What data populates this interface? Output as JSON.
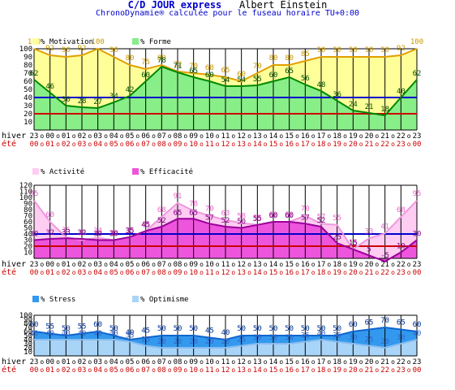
{
  "header": {
    "title": "C/D JOUR express",
    "author": "Albert Einstein",
    "subtitle": "ChronoDynamie® calculée pour le fuseau horaire TU+0:00"
  },
  "axis_rows": {
    "winter_label": "hiver",
    "summer_label": "été",
    "winter_hours": [
      "23",
      "00",
      "01",
      "02",
      "03",
      "04",
      "05",
      "06",
      "07",
      "08",
      "09",
      "10",
      "11",
      "12",
      "13",
      "14",
      "15",
      "16",
      "17",
      "18",
      "19",
      "20",
      "21",
      "22",
      "23"
    ],
    "summer_hours": [
      "00",
      "01",
      "02",
      "03",
      "04",
      "05",
      "06",
      "07",
      "08",
      "09",
      "10",
      "11",
      "12",
      "13",
      "14",
      "15",
      "16",
      "17",
      "18",
      "19",
      "20",
      "21",
      "22",
      "23",
      "00"
    ],
    "separator": "o",
    "winter_color": "#000000",
    "summer_color": "#cc0000"
  },
  "chart_data": [
    {
      "type": "area",
      "ylim": [
        0,
        100
      ],
      "yticks": [
        10,
        20,
        30,
        40,
        50,
        60,
        70,
        80,
        90,
        100
      ],
      "ref_lines": [
        {
          "value": 40,
          "color": "#0000cc"
        },
        {
          "value": 20,
          "color": "#cc0000"
        }
      ],
      "series": [
        {
          "name": "% Motivation",
          "fill": "#ffff99",
          "line": "#e0a000",
          "label_color": "#cc9900",
          "values": [
            100,
            92,
            90,
            92,
            100,
            90,
            80,
            75,
            80,
            72,
            70,
            68,
            65,
            60,
            70,
            80,
            80,
            85,
            90,
            90,
            90,
            90,
            90,
            92,
            100
          ]
        },
        {
          "name": "% Forme",
          "fill": "#88ee88",
          "line": "#008800",
          "label_color": "#005500",
          "values": [
            62,
            46,
            30,
            28,
            27,
            34,
            42,
            60,
            78,
            71,
            65,
            60,
            54,
            54,
            55,
            60,
            65,
            56,
            48,
            36,
            24,
            21,
            18,
            40,
            62
          ]
        }
      ]
    },
    {
      "type": "area",
      "ylim": [
        0,
        120
      ],
      "yticks": [
        10,
        20,
        30,
        40,
        50,
        60,
        70,
        80,
        90,
        100,
        110,
        120
      ],
      "ref_lines": [
        {
          "value": 40,
          "color": "#0000cc"
        },
        {
          "value": 20,
          "color": "#cc0000"
        }
      ],
      "series": [
        {
          "name": "% Activité",
          "fill": "#ffccf2",
          "line": "#ee99dd",
          "label_color": "#ee66cc",
          "values": [
            95,
            60,
            35,
            30,
            34,
            30,
            35,
            45,
            68,
            91,
            78,
            70,
            63,
            58,
            55,
            60,
            60,
            70,
            57,
            55,
            15,
            33,
            41,
            68,
            95
          ]
        },
        {
          "name": "% Efficacité",
          "fill": "#ee55dd",
          "line": "#990099",
          "label_color": "#880088",
          "values": [
            30,
            32,
            33,
            32,
            30,
            30,
            35,
            45,
            52,
            65,
            65,
            57,
            52,
            50,
            55,
            60,
            60,
            57,
            52,
            25,
            15,
            5,
            -5,
            10,
            30
          ]
        }
      ]
    },
    {
      "type": "area",
      "ylim": [
        0,
        100
      ],
      "yticks": [
        10,
        20,
        30,
        40,
        50,
        60,
        70,
        80,
        90,
        100
      ],
      "ref_lines": [],
      "series": [
        {
          "name": "% Stress",
          "fill": "#3399ee",
          "line": "#1166cc",
          "label_color": "#003399",
          "values": [
            60,
            55,
            50,
            55,
            60,
            50,
            40,
            45,
            50,
            50,
            50,
            45,
            40,
            50,
            50,
            50,
            50,
            50,
            50,
            50,
            60,
            65,
            70,
            65,
            60
          ]
        },
        {
          "name": "% Optimisme",
          "fill": "#a8d4f8",
          "line": "#88bbee",
          "label_color": "#3366cc",
          "values": [
            40,
            40,
            40,
            40,
            40,
            40,
            35,
            25,
            20,
            20,
            20,
            20,
            20,
            25,
            30,
            30,
            30,
            35,
            40,
            35,
            30,
            25,
            20,
            30,
            40
          ]
        }
      ]
    }
  ]
}
